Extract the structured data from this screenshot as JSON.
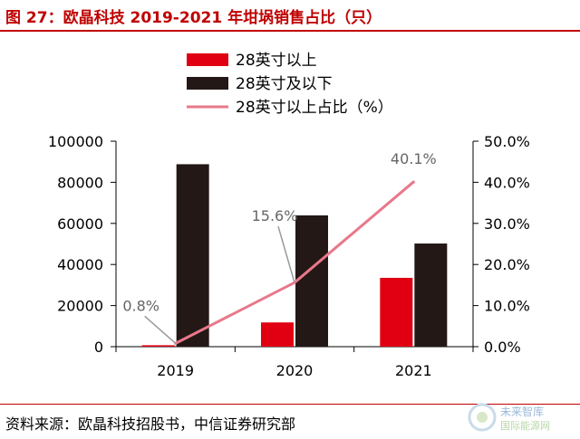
{
  "header": {
    "title": "图 27：欧晶科技 2019-2021 年坩埚销售占比（只）"
  },
  "footer": {
    "source": "资料来源：欧晶科技招股书，中信证券研究部"
  },
  "watermark": {
    "text": "未来智库",
    "sub": "国际能源网"
  },
  "colors": {
    "accent": "#c00000",
    "bar_large": "#e00012",
    "bar_small": "#231815",
    "line": "#e8788a",
    "callout": "#999999"
  },
  "chart_data": {
    "type": "bar",
    "categories": [
      "2019",
      "2020",
      "2021"
    ],
    "series": [
      {
        "name": "28英寸以上",
        "type": "bar",
        "axis": "left",
        "values": [
          700,
          11800,
          33500
        ]
      },
      {
        "name": "28英寸及以下",
        "type": "bar",
        "axis": "left",
        "values": [
          88800,
          63900,
          50200
        ]
      },
      {
        "name": "28英寸以上占比（%）",
        "type": "line",
        "axis": "right",
        "values": [
          0.8,
          15.6,
          40.1
        ]
      }
    ],
    "data_labels": [
      "0.8%",
      "15.6%",
      "40.1%"
    ],
    "y_left": {
      "min": 0,
      "max": 100000,
      "ticks": [
        0,
        20000,
        40000,
        60000,
        80000,
        100000
      ]
    },
    "y_right": {
      "min": 0,
      "max": 50,
      "ticks": [
        "0.0%",
        "10.0%",
        "20.0%",
        "30.0%",
        "40.0%",
        "50.0%"
      ]
    },
    "legend_position": "top",
    "grid": false
  }
}
